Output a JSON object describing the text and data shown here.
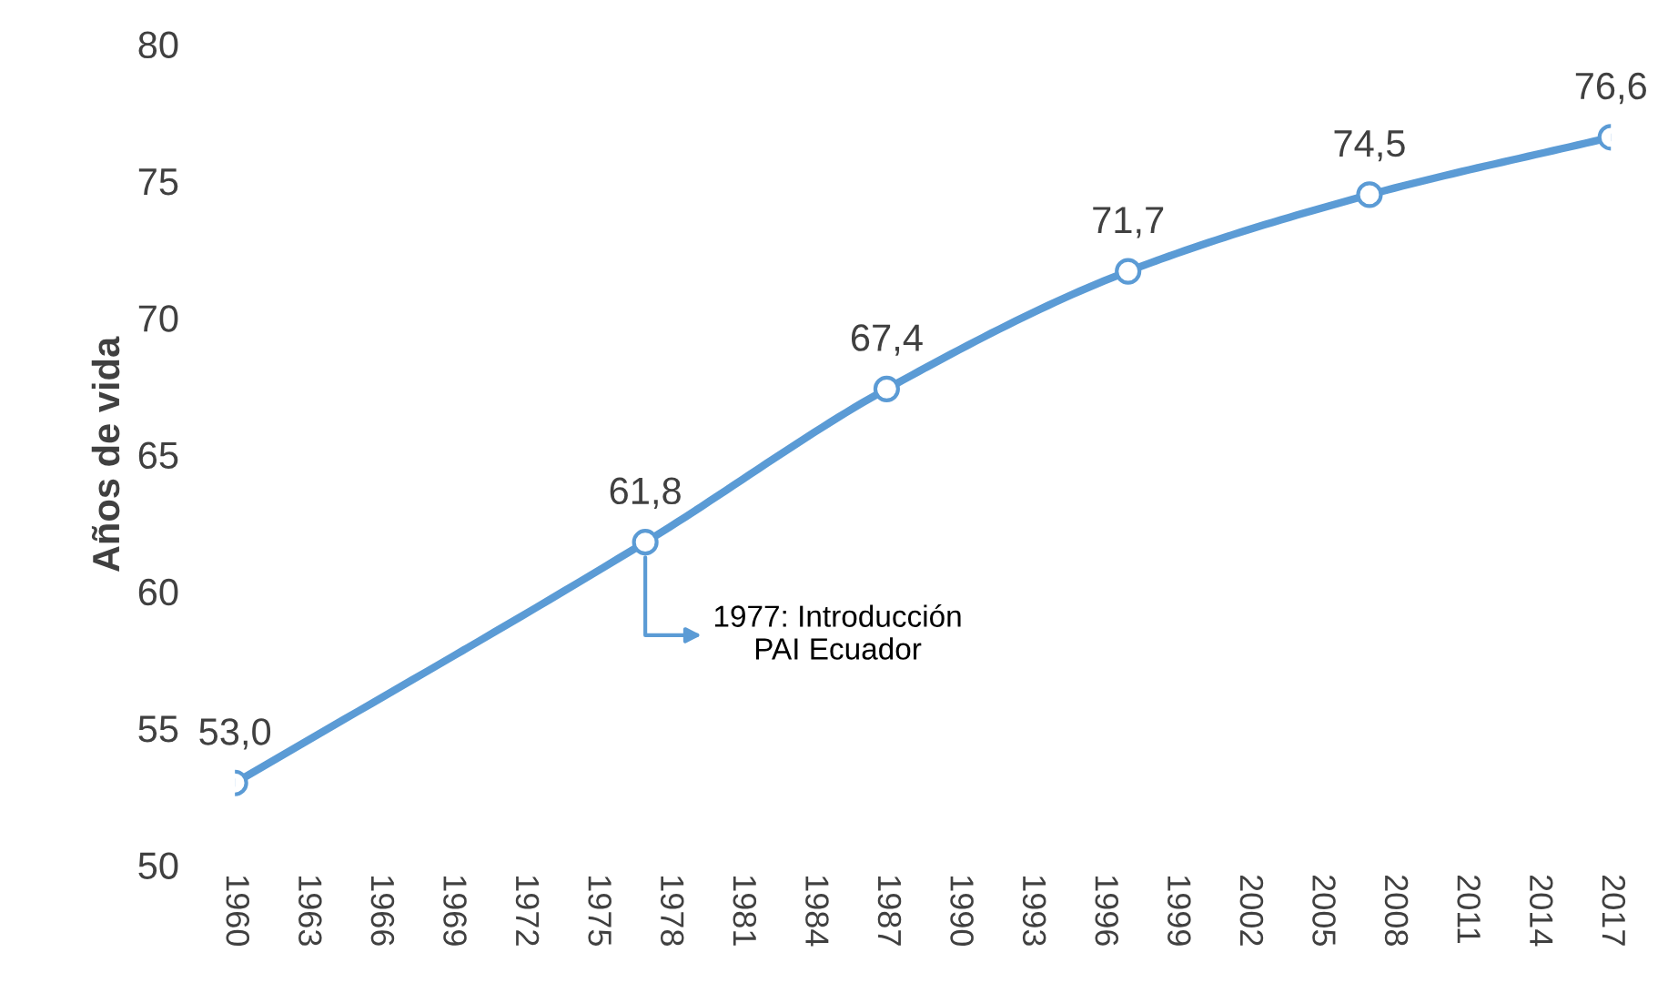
{
  "chart_data": {
    "type": "line",
    "ylabel": "Años de vida",
    "x": [
      1960,
      1977,
      1987,
      1997,
      2007,
      2017
    ],
    "series": [
      {
        "color": "#5b9bd5",
        "values": [
          53.0,
          61.8,
          67.4,
          71.7,
          74.5,
          76.6
        ],
        "value_labels": [
          "53,0",
          "61,8",
          "67,4",
          "71,7",
          "74,5",
          "76,6"
        ]
      }
    ],
    "xlim": [
      1960,
      2017
    ],
    "xticks": [
      1960,
      1963,
      1966,
      1969,
      1972,
      1975,
      1978,
      1981,
      1984,
      1987,
      1990,
      1993,
      1996,
      1999,
      2002,
      2005,
      2008,
      2011,
      2014,
      2017
    ],
    "ylim": [
      50,
      80
    ],
    "yticks": [
      50,
      55,
      60,
      65,
      70,
      75,
      80
    ],
    "marker": "circle",
    "grid": false,
    "annotations": [
      {
        "text": "1977: Introducción\nPAI Ecuador",
        "x": 1977,
        "y": 61.8
      }
    ]
  }
}
